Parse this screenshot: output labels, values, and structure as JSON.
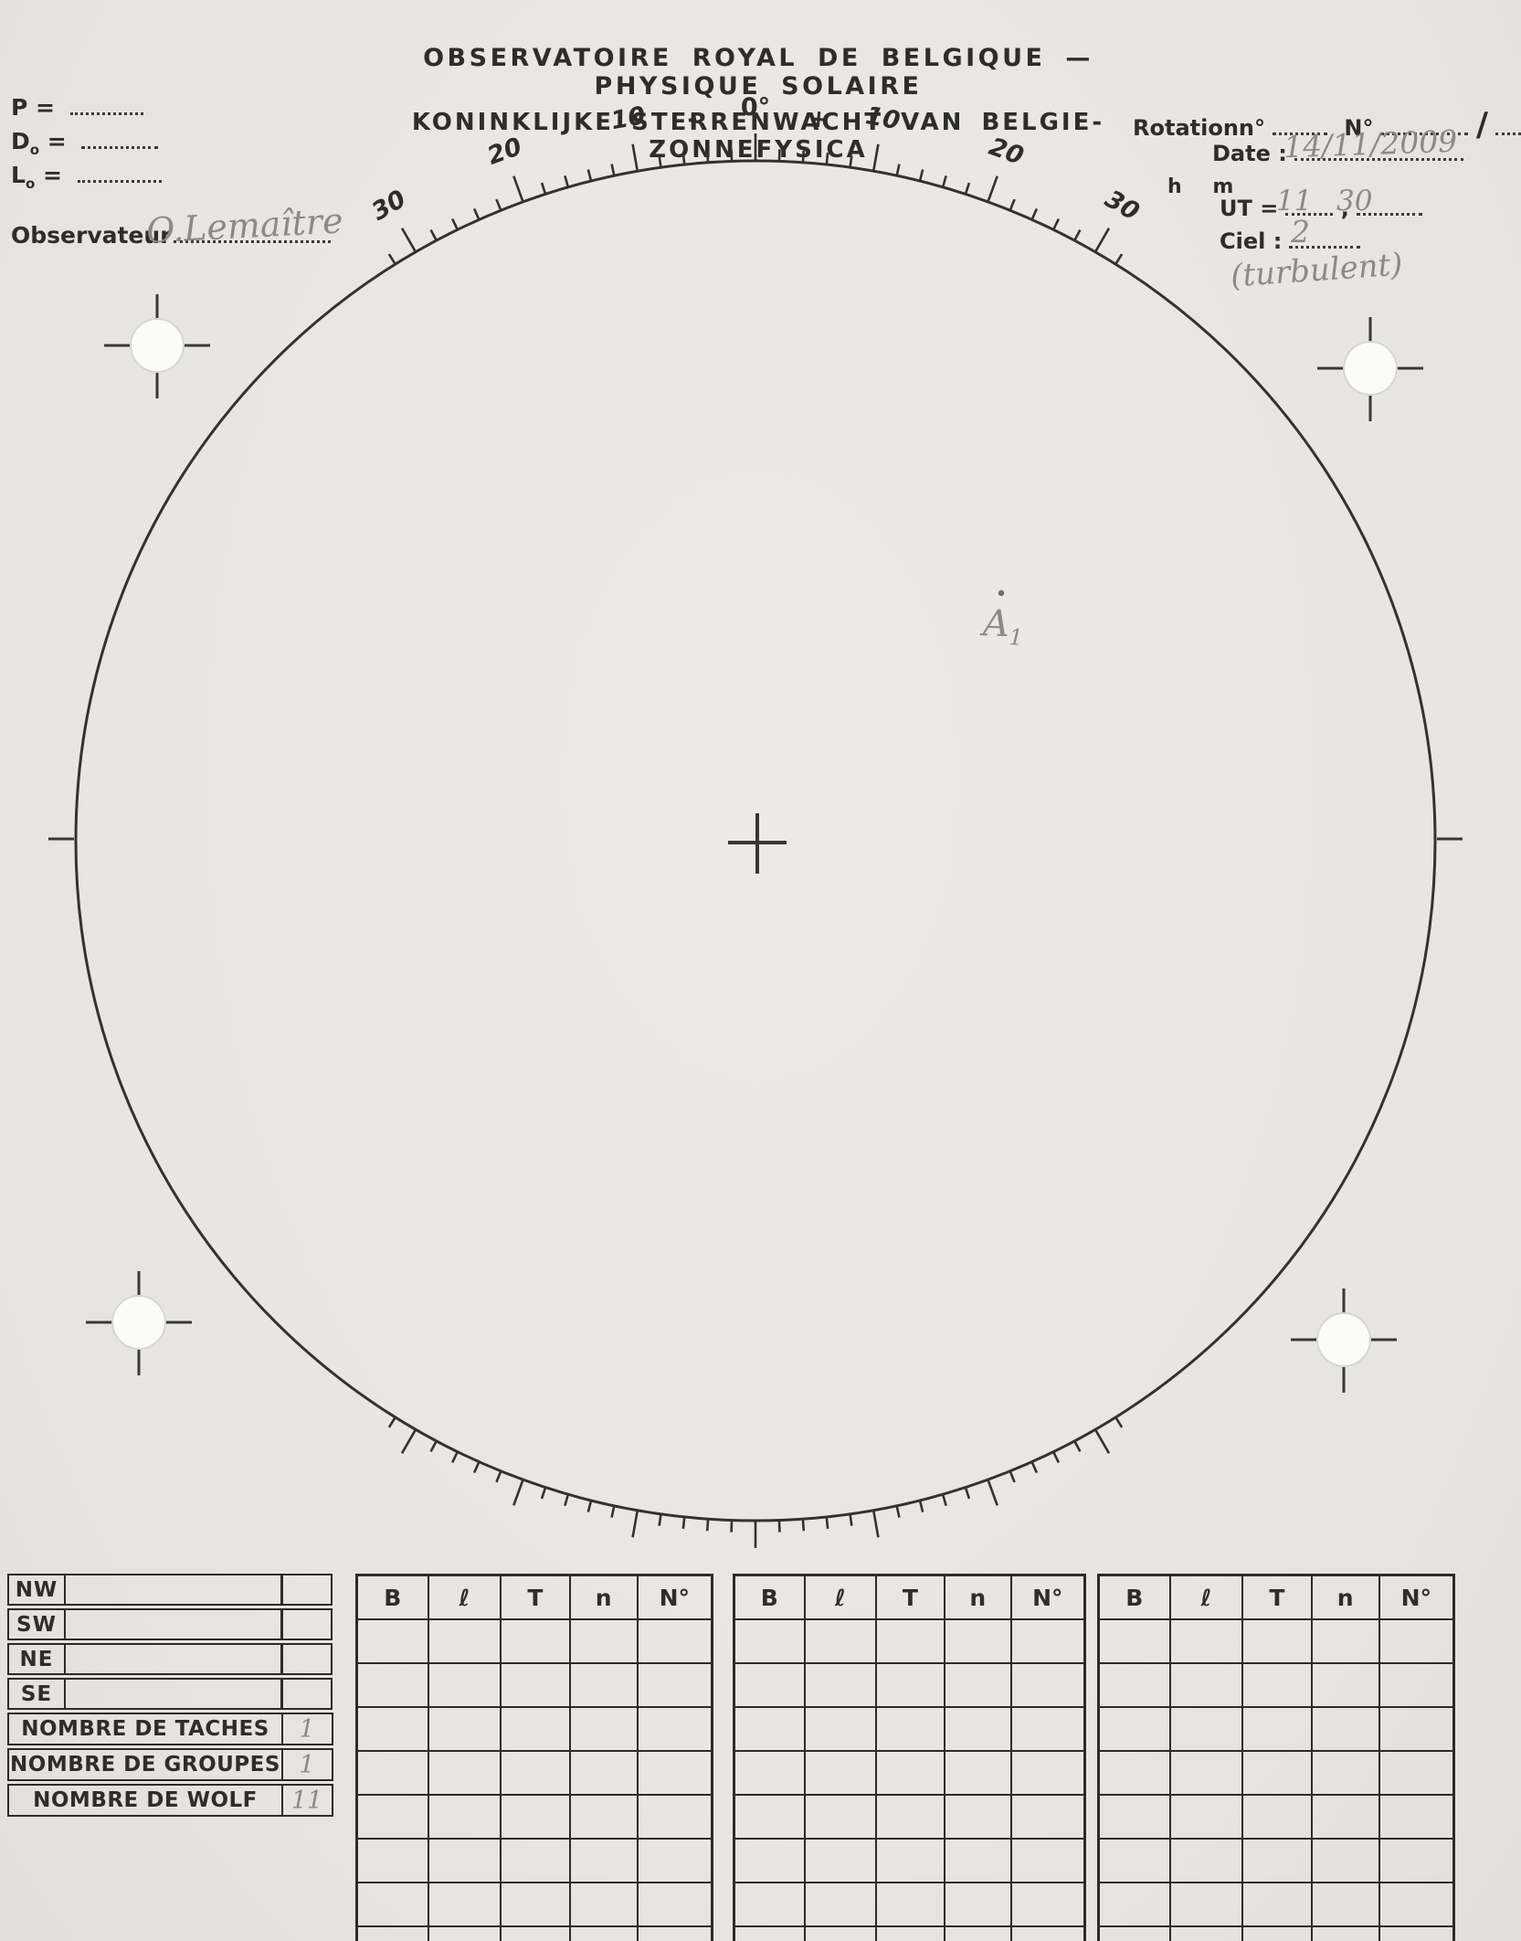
{
  "page": {
    "paper_color": "#eae8e3",
    "ink_color": "#2e2d2a",
    "pencil_color": "#8b8a85"
  },
  "header": {
    "title_line1": "OBSERVATOIRE ROYAL DE  BELGIQUE — PHYSIQUE SOLAIRE",
    "title_line2": "KONINKLIJKE STERRENWACHT VAN BELGIE-ZONNEFYSICA"
  },
  "observer_block": {
    "equals": "=",
    "fields": [
      {
        "label": "P",
        "sub": ""
      },
      {
        "label": "D",
        "sub": "o"
      },
      {
        "label": "L",
        "sub": "o"
      }
    ],
    "observer_label": "Observateur",
    "observer_value": "O.Lemaître"
  },
  "session_block": {
    "rotation_label": "Rotationn°",
    "number_label": "N°",
    "slash": "/",
    "date_label": "Date :",
    "date_value": "14/11/2009",
    "hours_label": "h",
    "minutes_label": "m",
    "ut_label": "UT =",
    "ut_hours": "11",
    "ut_comma": ",",
    "ut_minutes": "30",
    "sky_label": "Ciel :",
    "sky_value": "2",
    "sky_note": "(turbulent)"
  },
  "disk": {
    "scale_labels": [
      {
        "text": "30",
        "angle": -30
      },
      {
        "text": "20",
        "angle": -20
      },
      {
        "text": "10",
        "angle": -10
      },
      {
        "text": "-",
        "angle": -5
      },
      {
        "text": "0°",
        "angle": 0
      },
      {
        "text": "+",
        "angle": 5
      },
      {
        "text": "10",
        "angle": 10
      },
      {
        "text": "20",
        "angle": 20
      },
      {
        "text": "30",
        "angle": 30
      }
    ],
    "sunspot_label": "A",
    "sunspot_label_sub": "1"
  },
  "tables": {
    "quadrants": {
      "rows": [
        "NW",
        "SW",
        "NE",
        "SE"
      ],
      "summary": [
        {
          "label": "NOMBRE DE TACHES",
          "value": "1"
        },
        {
          "label": "NOMBRE DE GROUPES",
          "value": "1"
        },
        {
          "label": "NOMBRE DE WOLF",
          "value": "11"
        }
      ]
    },
    "group_tables": {
      "columns": [
        "B",
        "ℓ",
        "T",
        "n",
        "N°"
      ],
      "count": 3,
      "body_rows": 9
    }
  }
}
